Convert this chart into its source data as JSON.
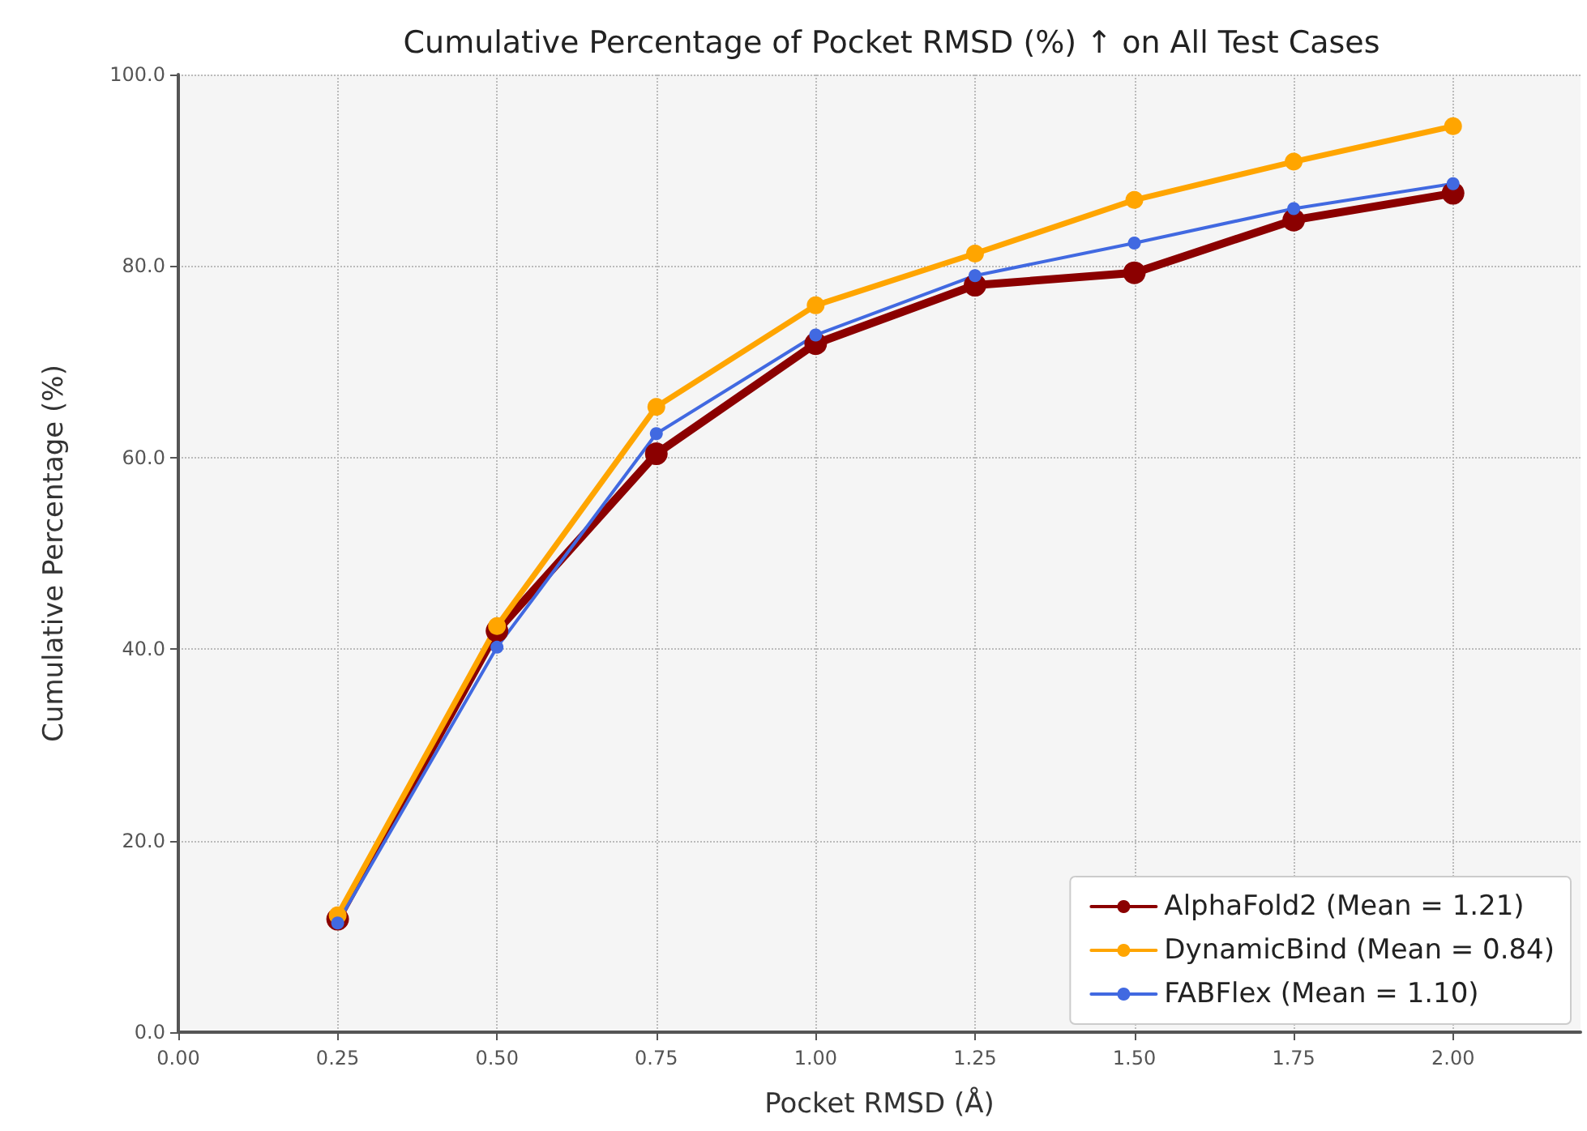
{
  "chart_data": {
    "type": "line",
    "title": "Cumulative Percentage of Pocket RMSD (%) ↑ on All Test Cases",
    "xlabel": "Pocket RMSD (Å)",
    "ylabel": "Cumulative Percentage (%)",
    "x": [
      0.25,
      0.5,
      0.75,
      1.0,
      1.25,
      1.5,
      1.75,
      2.0
    ],
    "series": [
      {
        "name": "AlphaFold2 (Mean = 1.21)",
        "color": "#8b0000",
        "values": [
          11.8,
          41.9,
          60.4,
          71.9,
          78.0,
          79.3,
          84.8,
          87.6
        ]
      },
      {
        "name": "DynamicBind (Mean = 0.84)",
        "color": "#ffa500",
        "values": [
          12.2,
          42.4,
          65.3,
          75.9,
          81.3,
          86.9,
          90.9,
          94.6
        ]
      },
      {
        "name": "FABFlex (Mean = 1.10)",
        "color": "#4169e1",
        "values": [
          11.4,
          40.2,
          62.5,
          72.8,
          79.0,
          82.4,
          86.0,
          88.6
        ]
      }
    ],
    "xlim": [
      0,
      2.2
    ],
    "xticks": [
      {
        "value": 0,
        "label": "0.00"
      },
      {
        "value": 0.25,
        "label": "0.25"
      },
      {
        "value": 0.5,
        "label": "0.50"
      },
      {
        "value": 0.75,
        "label": "0.75"
      },
      {
        "value": 1,
        "label": "1.00"
      },
      {
        "value": 1.25,
        "label": "1.25"
      },
      {
        "value": 1.5,
        "label": "1.50"
      },
      {
        "value": 1.75,
        "label": "1.75"
      },
      {
        "value": 2,
        "label": "2.00"
      }
    ],
    "ylim": [
      0,
      100
    ],
    "yticks": [
      {
        "value": 0,
        "label": "0.0"
      },
      {
        "value": 20,
        "label": "20.0"
      },
      {
        "value": 40,
        "label": "40.0"
      },
      {
        "value": 60,
        "label": "60.0"
      },
      {
        "value": 80,
        "label": "80.0"
      },
      {
        "value": 100,
        "label": "100.0"
      }
    ],
    "grid": true,
    "legend": "bottom right",
    "marker": "circle",
    "line_style": "solid"
  }
}
